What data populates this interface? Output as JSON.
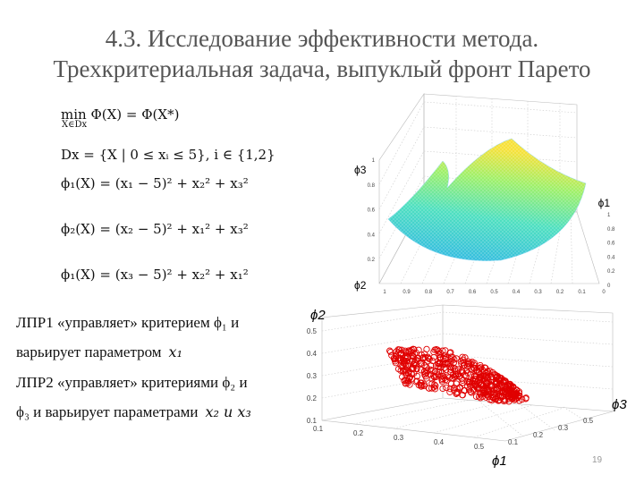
{
  "title": {
    "line1": "4.3. Исследование эффективности метода.",
    "line2": "Трехкритериальная задача, выпуклый фронт Парето"
  },
  "formulas": {
    "objective": "min Φ(X) = Φ(X*)",
    "objective_sub": "X∈Dx",
    "domain": "Dx = {X | 0 ≤ xᵢ ≤ 5}, i ∈ {1,2}",
    "phi1": "ϕ₁(X) = (x₁ − 5)² + x₂² + x₃²",
    "phi2": "ϕ₂(X) = (x₂ − 5)² + x₁² + x₃²",
    "phi3": "ϕ₁(X) = (x₃ − 5)² + x₂² + x₁²"
  },
  "description": {
    "line1": "ЛПР1 «управляет» критерием ϕ₁ и",
    "line2": "варьирует параметром",
    "line2_var": "x₁",
    "line3": "ЛПР2 «управляет» критериями ϕ₂ и",
    "line4": "ϕ₃ и варьирует параметрами",
    "line4_var": "x₂ и x₃"
  },
  "colors": {
    "title": "#555555",
    "scatter_marker": "#e00000",
    "surface_low": "#2fb4e8",
    "surface_high": "#f7e13a"
  },
  "chart_data": [
    {
      "type": "surface",
      "axis_labels": {
        "vertical": "ϕ3",
        "right": "ϕ1",
        "left": "ϕ2"
      },
      "vertical_ticks": [
        "1",
        "0.8",
        "0.6",
        "0.4",
        "0.2"
      ],
      "right_ticks": [
        "1",
        "0.8",
        "0.6",
        "0.4",
        "0.2",
        "0"
      ],
      "bottom_ticks": [
        "1",
        "0.9",
        "0.8",
        "0.7",
        "0.6",
        "0.5",
        "0.4",
        "0.3",
        "0.2",
        "0.1",
        "0"
      ],
      "grid": true,
      "colormap": "jet"
    },
    {
      "type": "scatter",
      "axis_labels": {
        "vertical": "ϕ2",
        "right": "ϕ3",
        "bottom": "ϕ1"
      },
      "y_ticks": [
        "0.5",
        "0.4",
        "0.3",
        "0.2",
        "0.1"
      ],
      "x_ticks": [
        "0.1",
        "0.2",
        "0.3",
        "0.4",
        "0.5"
      ],
      "depth_ticks": [
        "0.1",
        "0.2",
        "0.3",
        "0.5"
      ],
      "grid": true,
      "marker": "circle"
    }
  ],
  "page_number": "19"
}
